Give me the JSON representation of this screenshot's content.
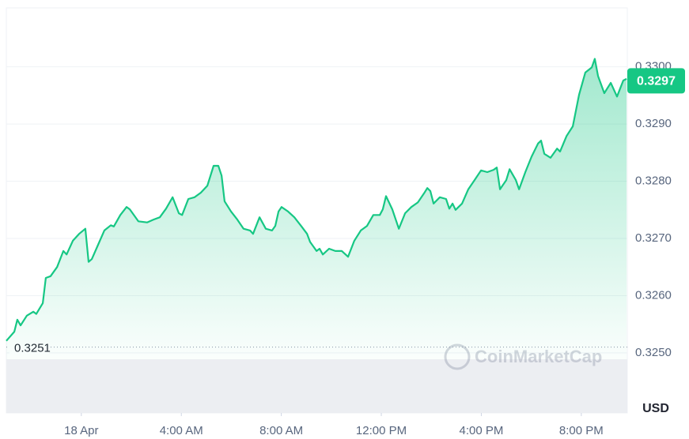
{
  "chart_data": {
    "type": "line",
    "color": "#16c784",
    "grid": true,
    "x": [
      -3.0,
      -2.68,
      -2.56,
      -2.43,
      -2.18,
      -1.92,
      -1.8,
      -1.54,
      -1.42,
      -1.23,
      -0.97,
      -0.72,
      -0.59,
      -0.34,
      -0.09,
      0.16,
      0.29,
      0.42,
      0.67,
      0.92,
      1.18,
      1.3,
      1.56,
      1.81,
      1.94,
      2.28,
      2.63,
      2.89,
      3.14,
      3.39,
      3.65,
      3.9,
      4.03,
      4.28,
      4.53,
      4.78,
      5.04,
      5.29,
      5.48,
      5.61,
      5.73,
      5.99,
      6.24,
      6.49,
      6.75,
      6.87,
      7.13,
      7.38,
      7.63,
      7.76,
      7.89,
      8.01,
      8.27,
      8.52,
      8.77,
      9.03,
      9.15,
      9.41,
      9.53,
      9.66,
      9.91,
      10.16,
      10.42,
      10.67,
      10.92,
      11.18,
      11.43,
      11.68,
      11.94,
      12.06,
      12.19,
      12.44,
      12.7,
      12.95,
      13.2,
      13.46,
      13.71,
      13.84,
      13.96,
      14.09,
      14.34,
      14.59,
      14.72,
      14.85,
      14.97,
      15.23,
      15.48,
      15.73,
      15.99,
      16.24,
      16.49,
      16.62,
      16.75,
      17.0,
      17.13,
      17.38,
      17.51,
      17.76,
      18.01,
      18.27,
      18.39,
      18.52,
      18.77,
      19.03,
      19.15,
      19.41,
      19.66,
      19.91,
      20.16,
      20.42,
      20.54,
      20.67,
      20.92,
      21.18,
      21.43,
      21.68,
      21.81
    ],
    "values": [
      0.32521,
      0.32537,
      0.32558,
      0.32548,
      0.32565,
      0.32572,
      0.32568,
      0.32587,
      0.32631,
      0.32634,
      0.3265,
      0.32678,
      0.32672,
      0.32696,
      0.32708,
      0.32717,
      0.32659,
      0.32664,
      0.32689,
      0.32714,
      0.32723,
      0.32721,
      0.32741,
      0.32755,
      0.32751,
      0.3273,
      0.32728,
      0.32733,
      0.32737,
      0.32752,
      0.32772,
      0.32744,
      0.32741,
      0.32769,
      0.32772,
      0.3278,
      0.32792,
      0.32827,
      0.32827,
      0.3281,
      0.32765,
      0.32747,
      0.32733,
      0.32717,
      0.32714,
      0.32708,
      0.32737,
      0.32717,
      0.32714,
      0.32722,
      0.32747,
      0.32755,
      0.32747,
      0.32737,
      0.32723,
      0.32708,
      0.32694,
      0.32678,
      0.32682,
      0.32672,
      0.32682,
      0.32678,
      0.32678,
      0.32668,
      0.32696,
      0.32714,
      0.32722,
      0.32741,
      0.32741,
      0.32751,
      0.32774,
      0.32751,
      0.32717,
      0.32744,
      0.32755,
      0.32763,
      0.32779,
      0.32788,
      0.32783,
      0.32761,
      0.32772,
      0.32769,
      0.32752,
      0.32761,
      0.3275,
      0.32761,
      0.32786,
      0.32802,
      0.32819,
      0.32816,
      0.3282,
      0.32824,
      0.32786,
      0.32802,
      0.32821,
      0.32802,
      0.32786,
      0.32816,
      0.32843,
      0.32866,
      0.32871,
      0.32848,
      0.32841,
      0.32857,
      0.32852,
      0.32879,
      0.32896,
      0.32951,
      0.3299,
      0.32999,
      0.33014,
      0.32984,
      0.32954,
      0.32972,
      0.32948,
      0.32976,
      0.32979
    ],
    "xlim": [
      -3,
      21.84
    ],
    "xticks": [
      {
        "value": 0,
        "label": "18 Apr"
      },
      {
        "value": 4,
        "label": "4:00 AM"
      },
      {
        "value": 8,
        "label": "8:00 AM"
      },
      {
        "value": 12,
        "label": "12:00 PM"
      },
      {
        "value": 16,
        "label": "4:00 PM"
      },
      {
        "value": 20,
        "label": "8:00 PM"
      }
    ],
    "ylim": [
      0.32395,
      0.33103
    ],
    "yticks": [
      {
        "value": 0.325,
        "label": "0.3250"
      },
      {
        "value": 0.326,
        "label": "0.3260"
      },
      {
        "value": 0.327,
        "label": "0.3270"
      },
      {
        "value": 0.328,
        "label": "0.3280"
      },
      {
        "value": 0.329,
        "label": "0.3290"
      },
      {
        "value": 0.33,
        "label": "0.3300"
      }
    ],
    "open_price": 0.3251,
    "last_price": 0.3297,
    "currency": "USD",
    "watermark": "CoinMarketCap"
  }
}
